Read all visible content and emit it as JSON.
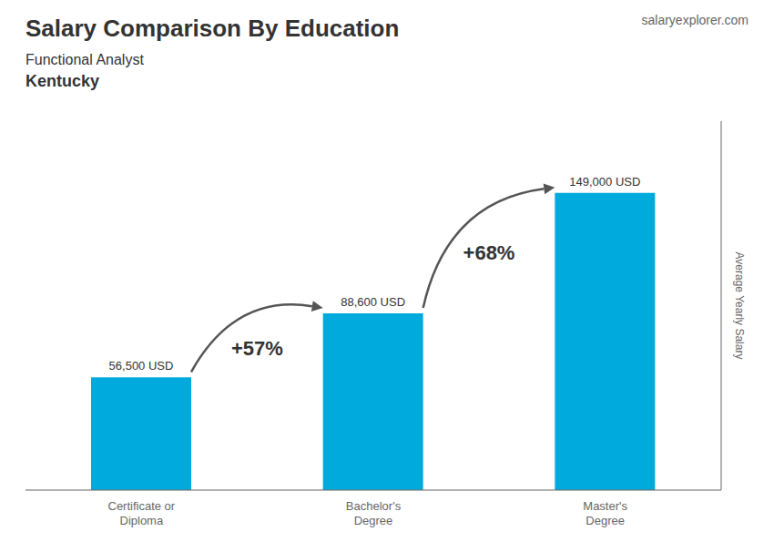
{
  "chart_data": {
    "type": "bar",
    "title": "Salary Comparison By Education",
    "subtitle": [
      "Functional Analyst",
      "Kentucky"
    ],
    "source": "salaryexplorer.com",
    "y_label": "Average Yearly Salary",
    "annotations": [
      "+57%",
      "+68%"
    ],
    "categories": [
      "Certificate or\nDiploma",
      "Bachelor's\nDegree",
      "Master's\nDegree"
    ],
    "values": [
      56500,
      88600,
      149000
    ],
    "value_labels": [
      "56,500 USD",
      "88,600 USD",
      "149,000 USD"
    ],
    "color": "#00aadd",
    "ylim": [
      0,
      185000
    ],
    "grid": false,
    "tick_labels": "x",
    "data_labels": true
  }
}
